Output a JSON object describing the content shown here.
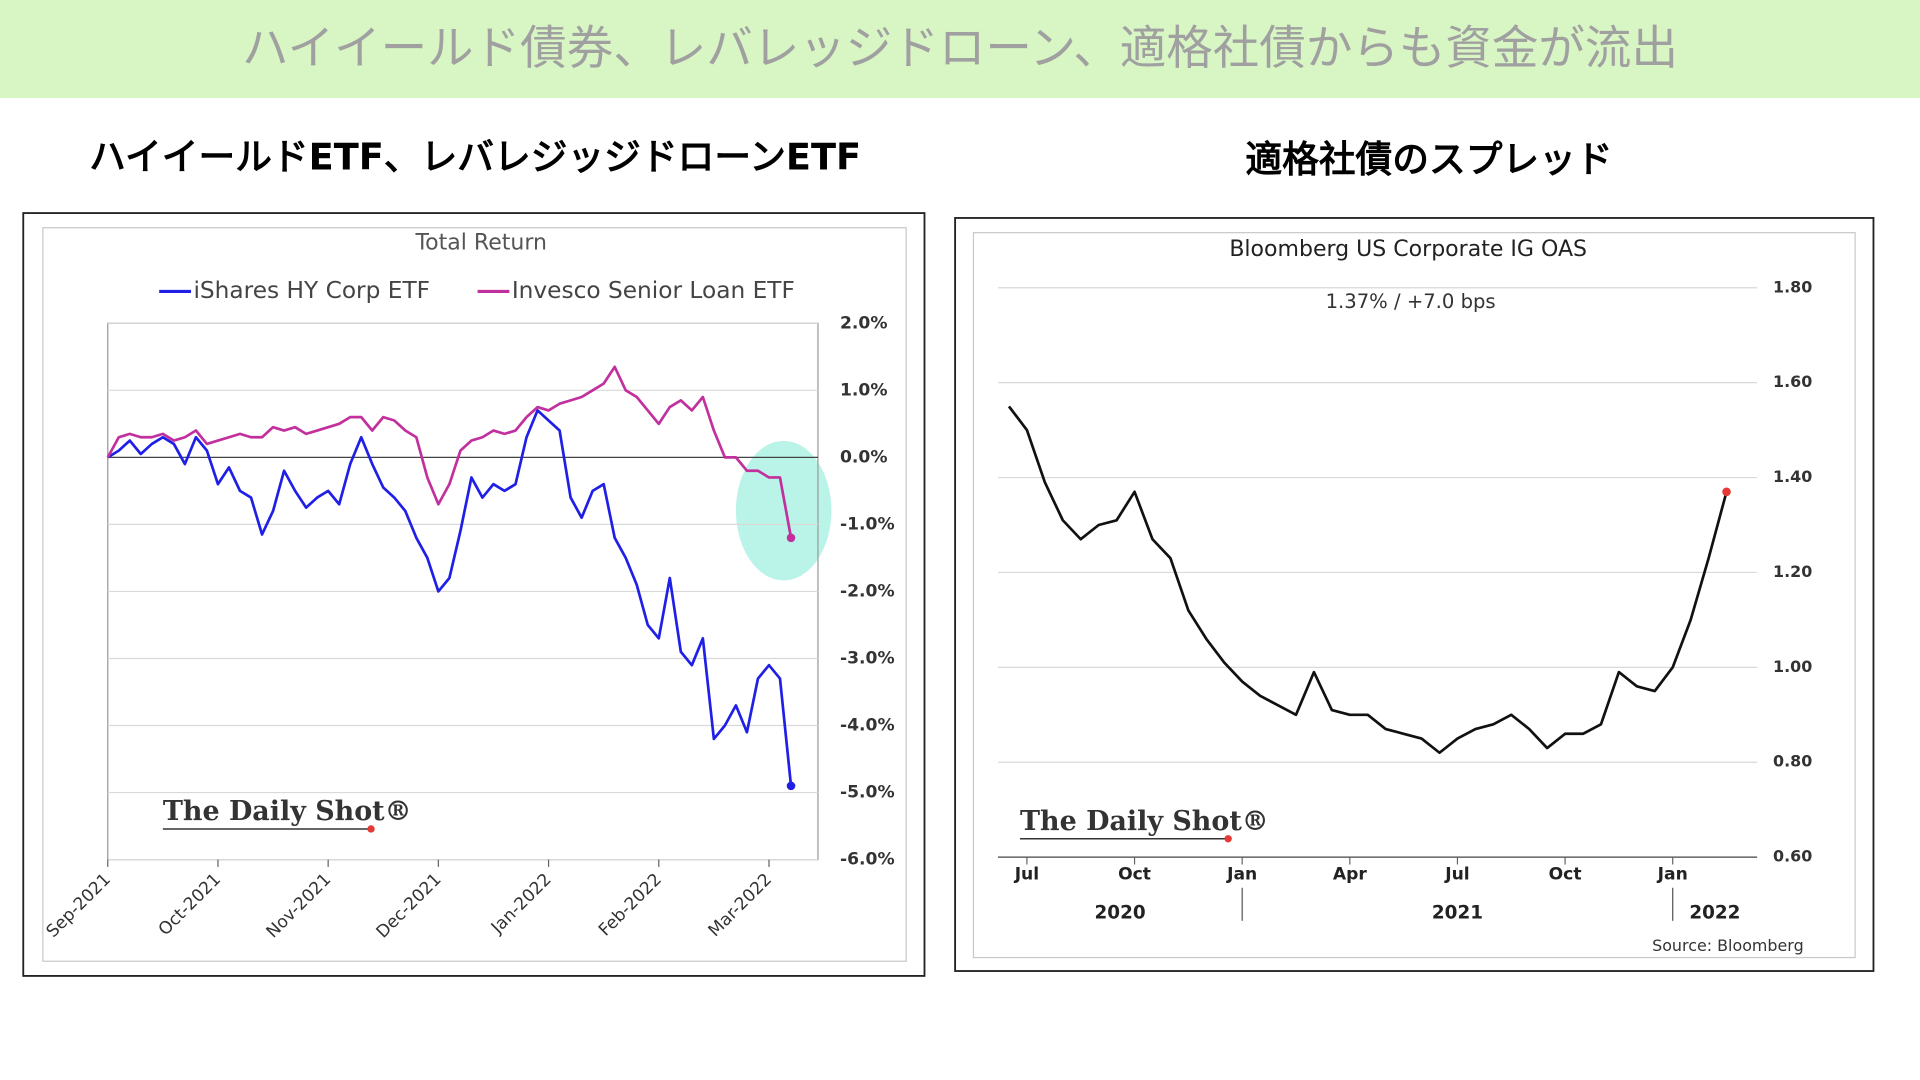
{
  "header": {
    "title": "ハイイールド債券、レバレッジドローン、適格社債からも資金が流出"
  },
  "chart_data": [
    {
      "type": "line",
      "panel_title": "ハイイールドETF、レバレジッジドローンETF",
      "title": "Total Return",
      "watermark": "The Daily Shot®",
      "categories": [
        "Sep-2021",
        null,
        null,
        null,
        null,
        null,
        null,
        null,
        null,
        null,
        "Oct-2021",
        null,
        null,
        null,
        null,
        null,
        null,
        null,
        null,
        null,
        "Nov-2021",
        null,
        null,
        null,
        null,
        null,
        null,
        null,
        null,
        null,
        "Dec-2021",
        null,
        null,
        null,
        null,
        null,
        null,
        null,
        null,
        null,
        "Jan-2022",
        null,
        null,
        null,
        null,
        null,
        null,
        null,
        null,
        null,
        "Feb-2022",
        null,
        null,
        null,
        null,
        null,
        null,
        null,
        null,
        null,
        "Mar-2022",
        null,
        null
      ],
      "series": [
        {
          "name": "iShares HY Corp ETF",
          "color": "#1f1fe6",
          "values": [
            0,
            0.1,
            0.25,
            0.05,
            0.2,
            0.3,
            0.2,
            -0.1,
            0.3,
            0.1,
            -0.4,
            -0.15,
            -0.5,
            -0.6,
            -1.15,
            -0.8,
            -0.2,
            -0.5,
            -0.75,
            -0.6,
            -0.5,
            -0.7,
            -0.1,
            0.3,
            -0.1,
            -0.45,
            -0.6,
            -0.8,
            -1.2,
            -1.5,
            -2.0,
            -1.8,
            -1.1,
            -0.3,
            -0.6,
            -0.4,
            -0.5,
            -0.4,
            0.3,
            0.7,
            0.55,
            0.4,
            -0.6,
            -0.9,
            -0.5,
            -0.4,
            -1.2,
            -1.5,
            -1.9,
            -2.5,
            -2.7,
            -1.8,
            -2.9,
            -3.1,
            -2.7,
            -4.2,
            -4.0,
            -3.7,
            -4.1,
            -3.3,
            -3.1,
            -3.3,
            -4.9
          ]
        },
        {
          "name": "Invesco Senior Loan ETF",
          "color": "#c2309e",
          "values": [
            0,
            0.3,
            0.35,
            0.3,
            0.3,
            0.35,
            0.25,
            0.3,
            0.4,
            0.2,
            0.25,
            0.3,
            0.35,
            0.3,
            0.3,
            0.45,
            0.4,
            0.45,
            0.35,
            0.4,
            0.45,
            0.5,
            0.6,
            0.6,
            0.4,
            0.6,
            0.55,
            0.4,
            0.3,
            -0.3,
            -0.7,
            -0.4,
            0.1,
            0.25,
            0.3,
            0.4,
            0.35,
            0.4,
            0.6,
            0.75,
            0.7,
            0.8,
            0.85,
            0.9,
            1.0,
            1.1,
            1.35,
            1.0,
            0.9,
            0.7,
            0.5,
            0.75,
            0.85,
            0.7,
            0.9,
            0.4,
            0.0,
            0.0,
            -0.2,
            -0.2,
            -0.3,
            -0.3,
            -1.2
          ]
        }
      ],
      "ylim": [
        -6,
        2
      ],
      "yticks": [
        {
          "value": 2,
          "label": "2.0%"
        },
        {
          "value": 1,
          "label": "1.0%"
        },
        {
          "value": 0,
          "label": "0.0%"
        },
        {
          "value": -1,
          "label": "-1.0%"
        },
        {
          "value": -2,
          "label": "-2.0%"
        },
        {
          "value": -3,
          "label": "-3.0%"
        },
        {
          "value": -4,
          "label": "-4.0%"
        },
        {
          "value": -5,
          "label": "-5.0%"
        },
        {
          "value": -6,
          "label": "-6.0%"
        }
      ],
      "grid": true,
      "legend": "top",
      "highlight_color": "#a9f1e2"
    },
    {
      "type": "line",
      "panel_title": "適格社債のスプレッド",
      "title": "Bloomberg US Corporate IG OAS",
      "subtitle": "1.37%  /  +7.0 bps",
      "watermark": "The Daily Shot®",
      "source": "Source: Bloomberg",
      "categories": [
        null,
        "Jul",
        null,
        null,
        null,
        null,
        null,
        "Oct",
        null,
        null,
        null,
        null,
        null,
        "Jan",
        null,
        null,
        null,
        null,
        null,
        "Apr",
        null,
        null,
        null,
        null,
        null,
        "Jul",
        null,
        null,
        null,
        null,
        null,
        "Oct",
        null,
        null,
        null,
        null,
        null,
        "Jan",
        null,
        null,
        null
      ],
      "years": [
        "2020",
        "2021",
        "2022"
      ],
      "series": [
        {
          "color": "#111111",
          "end_marker_color": "#e53935",
          "values": [
            1.55,
            1.5,
            1.39,
            1.31,
            1.27,
            1.3,
            1.31,
            1.37,
            1.27,
            1.23,
            1.12,
            1.06,
            1.01,
            0.97,
            0.94,
            0.92,
            0.9,
            0.99,
            0.91,
            0.9,
            0.9,
            0.87,
            0.86,
            0.85,
            0.82,
            0.85,
            0.87,
            0.88,
            0.9,
            0.87,
            0.83,
            0.86,
            0.86,
            0.88,
            0.99,
            0.96,
            0.95,
            1.0,
            1.1,
            1.23,
            1.37
          ]
        }
      ],
      "ylim": [
        0.6,
        1.8
      ],
      "yticks": [
        {
          "value": 0.6,
          "label": "0.60"
        },
        {
          "value": 0.8,
          "label": "0.80"
        },
        {
          "value": 1.0,
          "label": "1.00"
        },
        {
          "value": 1.2,
          "label": "1.20"
        },
        {
          "value": 1.4,
          "label": "1.40"
        },
        {
          "value": 1.6,
          "label": "1.60"
        },
        {
          "value": 1.8,
          "label": "1.80"
        }
      ],
      "grid": true
    }
  ]
}
